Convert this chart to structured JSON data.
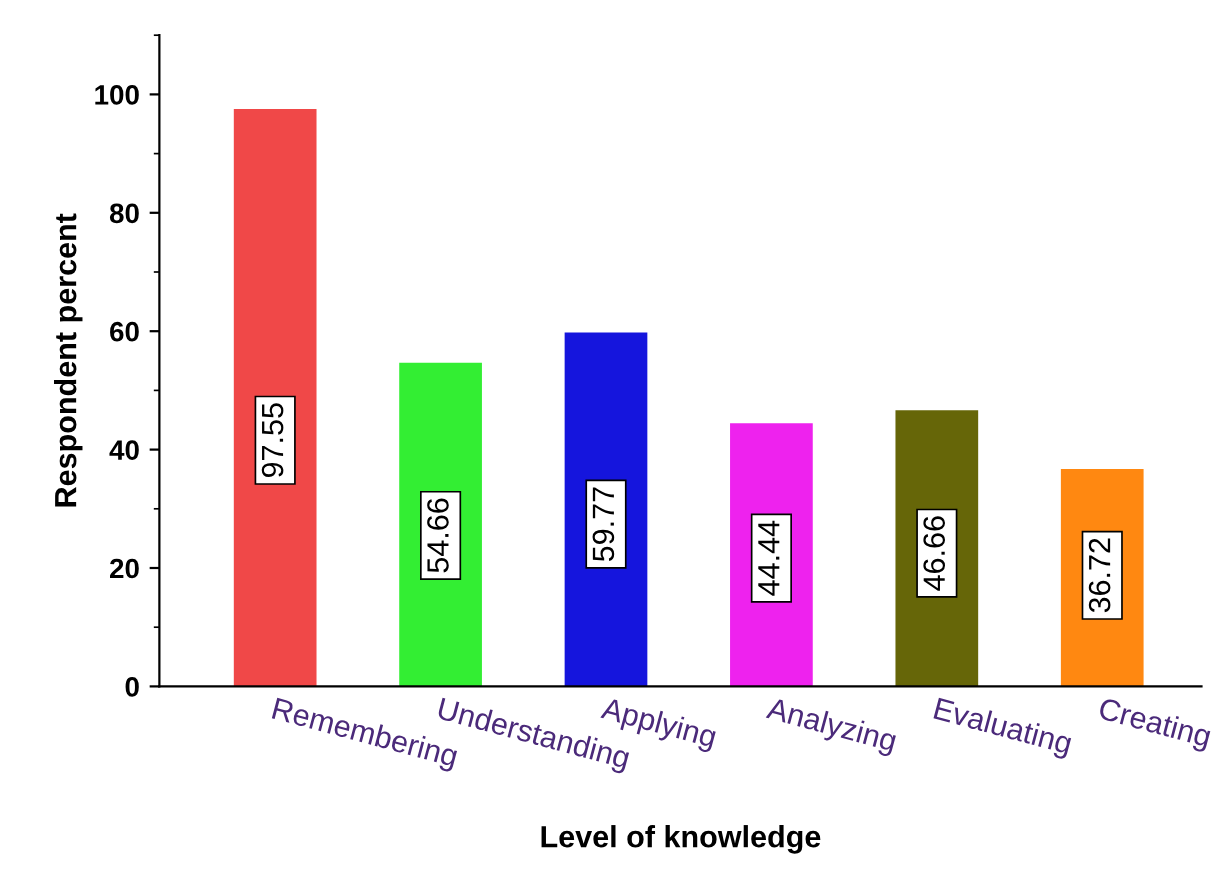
{
  "chart_data": {
    "type": "bar",
    "xlabel": "Level of knowledge",
    "ylabel": "Respondent percent",
    "categories": [
      "Remembering",
      "Understanding",
      "Applying",
      "Analyzing",
      "Evaluating",
      "Creating"
    ],
    "values": [
      97.55,
      54.66,
      59.77,
      44.44,
      46.66,
      36.72
    ],
    "colors": [
      "#f04848",
      "#33ee33",
      "#1515dd",
      "#ee22ee",
      "#666608",
      "#ff8811"
    ],
    "ylim": [
      0,
      110
    ],
    "yticks": [
      0,
      20,
      40,
      60,
      80,
      100
    ],
    "grid": false,
    "data_labels": true
  }
}
